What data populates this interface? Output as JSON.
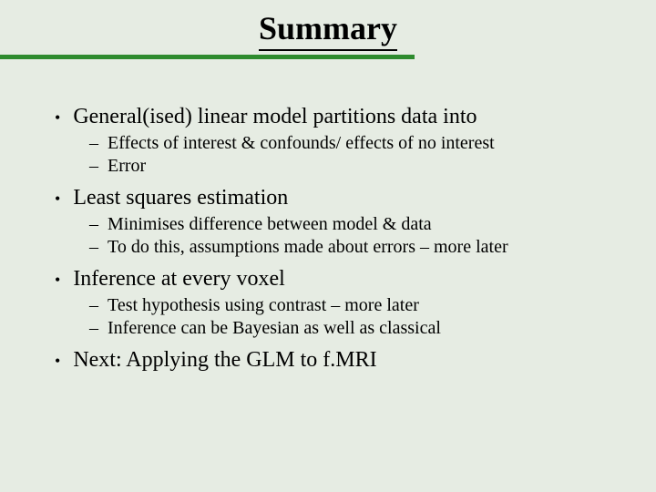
{
  "title": "Summary",
  "colors": {
    "background": "#e6ece3",
    "text": "#000000",
    "accent_line": "#2e8b2e"
  },
  "typography": {
    "font_family": "Times New Roman",
    "title_size": 36,
    "title_weight": "bold",
    "main_bullet_size": 24,
    "sub_bullet_size": 20
  },
  "sections": [
    {
      "main": "General(ised) linear model partitions data into",
      "subs": [
        "Effects of interest & confounds/ effects of no interest",
        "Error"
      ]
    },
    {
      "main": "Least squares estimation",
      "subs": [
        "Minimises difference between model & data",
        "To do this, assumptions made about errors – more later"
      ]
    },
    {
      "main": "Inference at every voxel",
      "subs": [
        "Test hypothesis using contrast – more later",
        "Inference can be Bayesian as well as classical"
      ]
    },
    {
      "main": "Next: Applying the GLM to f.MRI",
      "subs": []
    }
  ]
}
